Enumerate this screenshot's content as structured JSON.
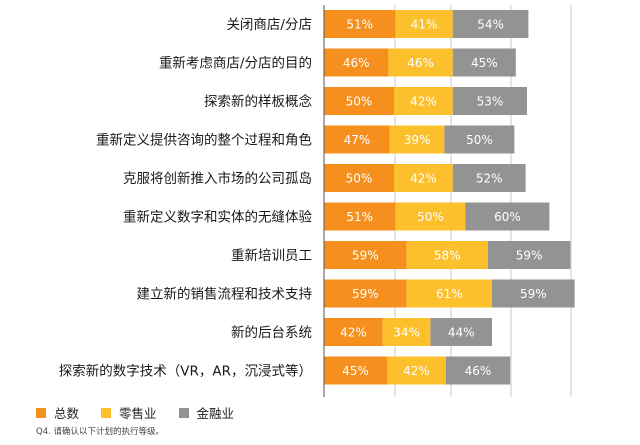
{
  "chart_data": {
    "type": "bar",
    "stacked": true,
    "orientation": "horizontal",
    "categories": [
      "关闭商店/分店",
      "重新考虑商店/分店的目的",
      "探索新的样板概念",
      "重新定义提供咨询的整个过程和角色",
      "克服将创新推入市场的公司孤岛",
      "重新定义数字和实体的无缝体验",
      "重新培训员工",
      "建立新的销售流程和技术支持",
      "新的后台系统",
      "探索新的数字技术（VR，AR，沉浸式等）"
    ],
    "series": [
      {
        "name": "总数",
        "color": "#F5901E",
        "values": [
          51,
          46,
          50,
          47,
          50,
          51,
          59,
          59,
          42,
          45
        ]
      },
      {
        "name": "零售业",
        "color": "#FDC02D",
        "values": [
          41,
          46,
          42,
          39,
          42,
          50,
          58,
          61,
          34,
          42
        ]
      },
      {
        "name": "金融业",
        "color": "#939393",
        "values": [
          54,
          45,
          53,
          50,
          52,
          60,
          59,
          59,
          44,
          46
        ]
      }
    ],
    "value_suffix": "%",
    "grid": true,
    "legend_position": "bottom-left"
  },
  "footnote": "Q4. 请确认以下计划的执行等级。"
}
